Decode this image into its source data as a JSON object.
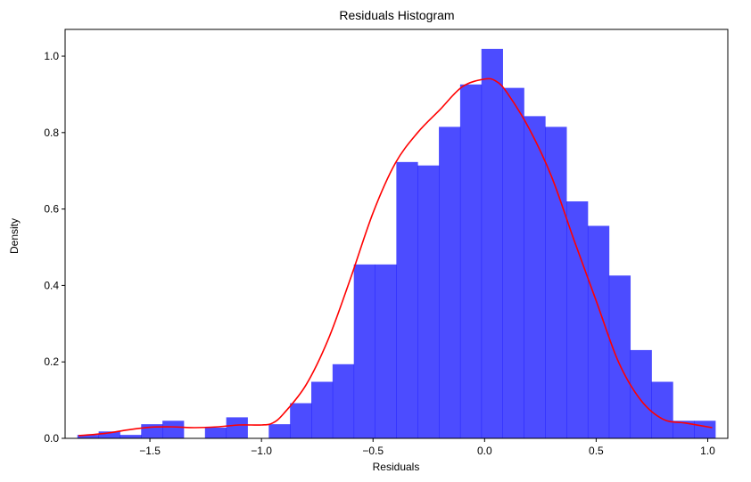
{
  "chart_data": {
    "type": "bar",
    "title": "Residuals Histogram",
    "xlabel": "Residuals",
    "ylabel": "Density",
    "xlim": [
      -1.88,
      1.09
    ],
    "ylim": [
      0,
      1.07
    ],
    "xticks": [
      -1.5,
      -1.0,
      -0.5,
      0.0,
      0.5,
      1.0
    ],
    "xtick_labels": [
      "−1.5",
      "−1.0",
      "−0.5",
      "0.0",
      "0.5",
      "1.0"
    ],
    "yticks": [
      0.0,
      0.2,
      0.4,
      0.6,
      0.8,
      1.0
    ],
    "ytick_labels": [
      "0.0",
      "0.2",
      "0.4",
      "0.6",
      "0.8",
      "1.0"
    ],
    "grid": false,
    "colors": {
      "bars": "#0000ff",
      "kde": "#ff0000"
    },
    "histogram": {
      "bin_start": -1.825,
      "bin_width": 0.0953,
      "densities": [
        0.009,
        0.018,
        0.009,
        0.037,
        0.046,
        0.0,
        0.028,
        0.055,
        0.0,
        0.037,
        0.092,
        0.148,
        0.194,
        0.455,
        0.455,
        0.723,
        0.714,
        0.815,
        0.926,
        1.019,
        0.917,
        0.843,
        0.815,
        0.62,
        0.556,
        0.426,
        0.231,
        0.148,
        0.046,
        0.046
      ]
    },
    "series": [
      {
        "type": "line",
        "x": [
          -1.82,
          -1.7,
          -1.6,
          -1.5,
          -1.4,
          -1.3,
          -1.2,
          -1.1,
          -1.0,
          -0.95,
          -0.9,
          -0.8,
          -0.7,
          -0.6,
          -0.5,
          -0.4,
          -0.3,
          -0.2,
          -0.1,
          0.0,
          0.05,
          0.1,
          0.2,
          0.3,
          0.4,
          0.5,
          0.6,
          0.7,
          0.8,
          0.9,
          1.02
        ],
        "y": [
          0.007,
          0.013,
          0.022,
          0.029,
          0.03,
          0.028,
          0.03,
          0.035,
          0.035,
          0.04,
          0.065,
          0.14,
          0.26,
          0.42,
          0.59,
          0.72,
          0.8,
          0.86,
          0.92,
          0.94,
          0.935,
          0.905,
          0.81,
          0.685,
          0.52,
          0.36,
          0.2,
          0.1,
          0.05,
          0.04,
          0.028
        ]
      }
    ]
  }
}
